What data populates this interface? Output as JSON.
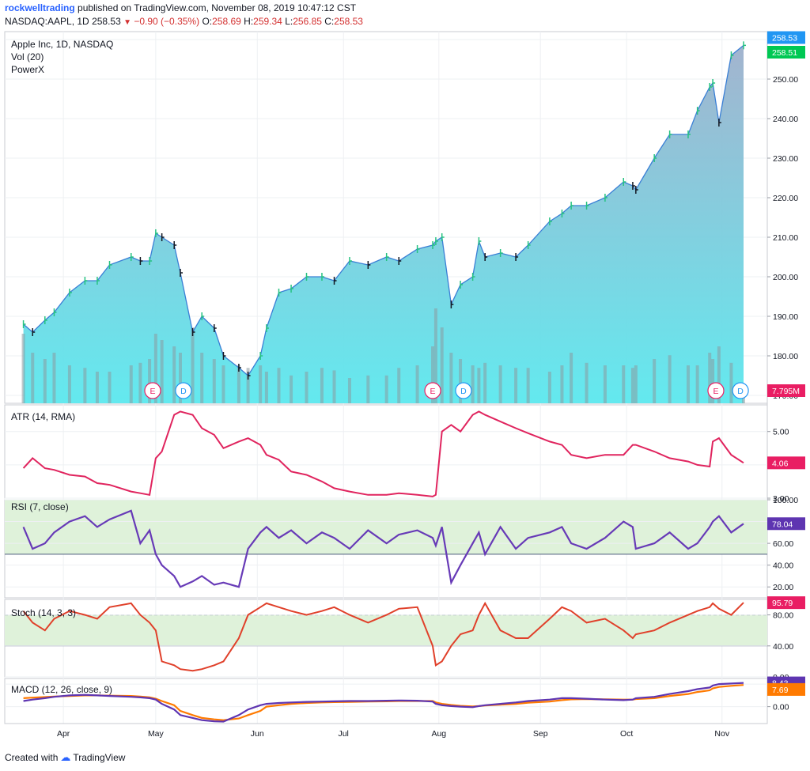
{
  "header": {
    "author": "rockwelltrading",
    "published_text": "published on TradingView.com, November 08, 2019 10:47:12 CST",
    "symbol_line": "NASDAQ:AAPL, 1D",
    "last": "258.53",
    "change": "−0.90 (−0.35%)",
    "o_label": "O:",
    "o_value": "258.69",
    "h_label": "H:",
    "h_value": "259.34",
    "l_label": "L:",
    "l_value": "256.85",
    "c_label": "C:",
    "c_value": "258.53"
  },
  "footer": {
    "created_with": "Created with",
    "brand": "TradingView"
  },
  "colors": {
    "up": "#26c281",
    "down": "#d32f2f",
    "bar": "#131722",
    "area_top": "#9eb0cc",
    "area_bottom": "#5be8ee",
    "line": "#3a7fd5",
    "volume": "#8a9aa0",
    "atr": "#e0245e",
    "rsi": "#673ab7",
    "stoch": "#e0402a",
    "macd": "#5e35b1",
    "signal": "#ff7a00",
    "rsi_bg": "#dff2da",
    "tag_blue": "#2196f3",
    "tag_green": "#00c853",
    "tag_red": "#e91e63",
    "tag_purple": "#5e35b1",
    "tag_orange": "#ff7a00"
  },
  "chart_data": [
    {
      "type": "area",
      "title": "Apple Inc, 1D, NASDAQ",
      "legend": [
        "Vol (20)",
        "PowerX"
      ],
      "ylim": [
        168,
        262
      ],
      "yticks": [
        "170.00",
        "180.00",
        "190.00",
        "200.00",
        "210.00",
        "220.00",
        "230.00",
        "240.00",
        "250.00",
        "260.00"
      ],
      "ytick_values": [
        170,
        180,
        190,
        200,
        210,
        220,
        230,
        240,
        250,
        260
      ],
      "x": [
        "2019-03-19",
        "2019-03-22",
        "2019-03-26",
        "2019-03-29",
        "2019-04-03",
        "2019-04-08",
        "2019-04-12",
        "2019-04-16",
        "2019-04-23",
        "2019-04-26",
        "2019-04-29",
        "2019-05-01",
        "2019-05-03",
        "2019-05-07",
        "2019-05-09",
        "2019-05-13",
        "2019-05-16",
        "2019-05-20",
        "2019-05-23",
        "2019-05-28",
        "2019-05-31",
        "2019-06-04",
        "2019-06-06",
        "2019-06-10",
        "2019-06-14",
        "2019-06-19",
        "2019-06-24",
        "2019-06-28",
        "2019-07-03",
        "2019-07-09",
        "2019-07-15",
        "2019-07-19",
        "2019-07-25",
        "2019-07-30",
        "2019-07-31",
        "2019-08-02",
        "2019-08-05",
        "2019-08-08",
        "2019-08-12",
        "2019-08-14",
        "2019-08-16",
        "2019-08-21",
        "2019-08-26",
        "2019-08-30",
        "2019-09-06",
        "2019-09-10",
        "2019-09-13",
        "2019-09-18",
        "2019-09-24",
        "2019-09-30",
        "2019-10-03",
        "2019-10-04",
        "2019-10-10",
        "2019-10-15",
        "2019-10-21",
        "2019-10-24",
        "2019-10-28",
        "2019-10-29",
        "2019-10-31",
        "2019-11-04",
        "2019-11-08"
      ],
      "close": [
        188,
        186,
        189,
        191,
        196,
        199,
        199,
        203,
        205,
        204,
        204,
        211,
        210,
        208,
        201,
        186,
        190,
        187,
        180,
        177,
        175,
        180,
        187,
        196,
        197,
        200,
        200,
        199,
        204,
        203,
        205,
        204,
        207,
        208,
        209,
        210,
        193,
        198,
        200,
        209,
        205,
        206,
        205,
        208,
        214,
        216,
        218,
        218,
        220,
        224,
        223,
        222,
        230,
        236,
        236,
        242,
        248,
        249,
        239,
        256,
        258.53
      ],
      "volume_millions": [
        55,
        40,
        35,
        40,
        30,
        28,
        25,
        25,
        30,
        32,
        35,
        55,
        50,
        45,
        40,
        60,
        40,
        35,
        30,
        30,
        28,
        30,
        25,
        28,
        22,
        25,
        28,
        26,
        20,
        22,
        22,
        28,
        30,
        45,
        75,
        60,
        40,
        35,
        30,
        28,
        32,
        30,
        28,
        28,
        25,
        30,
        40,
        32,
        30,
        30,
        28,
        30,
        35,
        38,
        30,
        30,
        40,
        35,
        45,
        32,
        7.795
      ],
      "earnings_markers": [
        "2019-04-30",
        "2019-07-30",
        "2019-10-30"
      ],
      "dividend_markers": [
        "2019-05-10",
        "2019-08-09",
        "2019-11-07"
      ],
      "last_price": "258.53",
      "powerx_value": "258.51",
      "volume_value": "7.795M"
    },
    {
      "type": "line",
      "title": "ATR (14, RMA)",
      "ylim": [
        3.0,
        5.8
      ],
      "yticks": [
        "3.00",
        "4.00",
        "5.00"
      ],
      "ytick_values": [
        3,
        4,
        5
      ],
      "values": [
        3.9,
        4.2,
        3.9,
        3.85,
        3.7,
        3.65,
        3.45,
        3.4,
        3.2,
        3.15,
        3.1,
        4.2,
        4.4,
        5.5,
        5.6,
        5.5,
        5.1,
        4.9,
        4.5,
        4.7,
        4.8,
        4.6,
        4.3,
        4.15,
        3.8,
        3.7,
        3.5,
        3.3,
        3.2,
        3.1,
        3.1,
        3.15,
        3.1,
        3.05,
        3.1,
        5.0,
        5.2,
        5.0,
        5.5,
        5.6,
        5.5,
        5.3,
        5.1,
        4.95,
        4.7,
        4.6,
        4.3,
        4.2,
        4.3,
        4.3,
        4.6,
        4.6,
        4.4,
        4.2,
        4.1,
        4.0,
        3.95,
        4.7,
        4.8,
        4.3,
        4.06
      ],
      "last": "4.06"
    },
    {
      "type": "line",
      "title": "RSI (7, close)",
      "ylim": [
        10,
        100
      ],
      "yticks": [
        "20.00",
        "40.00",
        "60.00",
        "80.00",
        "100.00"
      ],
      "ytick_values": [
        20,
        40,
        60,
        80,
        100
      ],
      "band": [
        50,
        100
      ],
      "values": [
        75,
        55,
        60,
        70,
        80,
        85,
        75,
        82,
        90,
        60,
        72,
        50,
        40,
        30,
        20,
        25,
        30,
        22,
        24,
        20,
        55,
        70,
        75,
        65,
        72,
        60,
        70,
        65,
        55,
        72,
        60,
        68,
        72,
        65,
        58,
        75,
        24,
        40,
        60,
        70,
        50,
        75,
        55,
        65,
        70,
        75,
        60,
        55,
        65,
        80,
        75,
        55,
        60,
        70,
        55,
        60,
        75,
        80,
        85,
        70,
        78.04
      ],
      "last": "78.04"
    },
    {
      "type": "line",
      "title": "Stoch (14, 3, 3)",
      "ylim": [
        0,
        100
      ],
      "yticks": [
        "0.00",
        "40.00",
        "80.00"
      ],
      "ytick_values": [
        0,
        40,
        80
      ],
      "band": [
        40,
        80
      ],
      "values": [
        85,
        70,
        60,
        75,
        85,
        80,
        75,
        90,
        95,
        80,
        70,
        60,
        20,
        15,
        10,
        8,
        10,
        15,
        20,
        50,
        80,
        90,
        95,
        90,
        85,
        80,
        85,
        90,
        80,
        70,
        80,
        88,
        90,
        40,
        15,
        20,
        40,
        55,
        60,
        80,
        95,
        60,
        50,
        50,
        75,
        90,
        85,
        70,
        75,
        60,
        50,
        55,
        60,
        70,
        80,
        85,
        90,
        95,
        88,
        80,
        95.79
      ],
      "last": "95.79"
    },
    {
      "type": "line",
      "title": "MACD (12, 26, close, 9)",
      "ylim": [
        -6,
        10
      ],
      "yticks": [
        "0.00",
        "8.00"
      ],
      "ytick_values": [
        0,
        8
      ],
      "series": [
        {
          "name": "MACD",
          "values": [
            2,
            2.5,
            3,
            3.5,
            4,
            4.2,
            4.0,
            3.8,
            3.5,
            3.3,
            3.0,
            2.5,
            1,
            -1,
            -3,
            -4,
            -4.8,
            -5.2,
            -5.3,
            -3,
            -1,
            0.5,
            1,
            1.3,
            1.5,
            1.7,
            1.8,
            1.9,
            2,
            2.0,
            2.1,
            2.2,
            2.1,
            1.8,
            1.0,
            0.5,
            0.2,
            0,
            -0.2,
            0.2,
            0.5,
            1.0,
            1.5,
            2,
            2.5,
            3,
            3,
            2.8,
            2.5,
            2.3,
            2.5,
            3,
            3.5,
            4.5,
            5.5,
            6.2,
            6.8,
            7.5,
            8.0,
            8.2,
            8.43
          ]
        },
        {
          "name": "Signal",
          "values": [
            3,
            3.2,
            3.4,
            3.6,
            3.8,
            4.0,
            4.0,
            3.9,
            3.8,
            3.6,
            3.3,
            2.8,
            2,
            0.5,
            -1.5,
            -3,
            -4,
            -4.5,
            -4.8,
            -4.2,
            -3,
            -1.5,
            0,
            0.5,
            1,
            1.3,
            1.5,
            1.6,
            1.7,
            1.8,
            1.9,
            2.0,
            2.0,
            2.0,
            1.5,
            1.0,
            0.6,
            0.3,
            0.1,
            0.2,
            0.4,
            0.7,
            1.0,
            1.4,
            1.8,
            2.3,
            2.6,
            2.7,
            2.6,
            2.5,
            2.5,
            2.7,
            3.0,
            3.8,
            4.5,
            5.2,
            5.8,
            6.5,
            7.0,
            7.4,
            7.69
          ]
        }
      ],
      "last_macd": "8.43",
      "last_signal": "7.69"
    }
  ],
  "x_axis": {
    "labels": [
      "Apr",
      "May",
      "Jun",
      "Jul",
      "Aug",
      "Sep",
      "Oct",
      "Nov"
    ],
    "label_dates": [
      "2019-04-01",
      "2019-05-01",
      "2019-06-03",
      "2019-07-01",
      "2019-08-01",
      "2019-09-03",
      "2019-10-01",
      "2019-11-01"
    ],
    "start": "2019-03-15",
    "end": "2019-11-08"
  },
  "markers": {
    "earnings_letter": "E",
    "dividend_letter": "D"
  }
}
